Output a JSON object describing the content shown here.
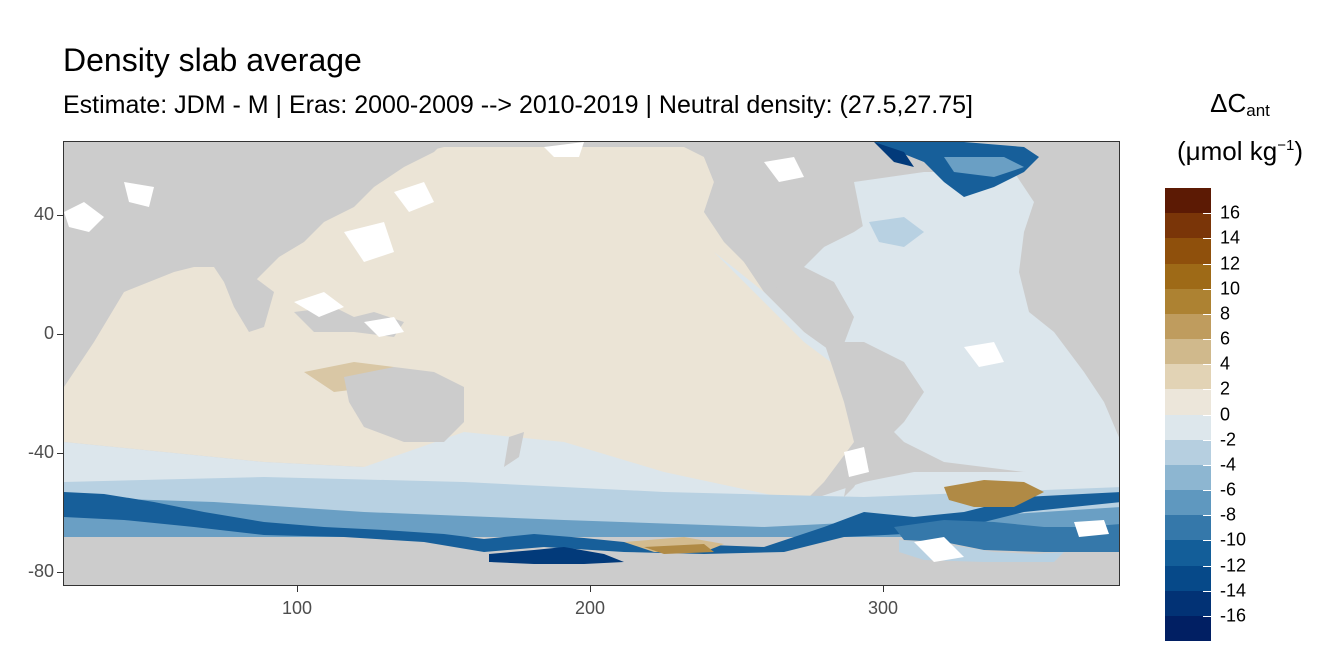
{
  "title": "Density slab average",
  "subtitle": "Estimate: JDM - M | Eras: 2000-2009 --> 2010-2019 | Neutral density: (27.5,27.75]",
  "legend": {
    "title_main": "ΔC",
    "title_sub": "ant",
    "unit_prefix": "(μmol kg",
    "unit_sup": "−1",
    "unit_suffix": ")",
    "labels": [
      "16",
      "14",
      "12",
      "10",
      "8",
      "6",
      "4",
      "2",
      "0",
      "-2",
      "-4",
      "-6",
      "-8",
      "-10",
      "-12",
      "-14",
      "-16"
    ],
    "colors": [
      "#5c1a04",
      "#7a3508",
      "#8f500c",
      "#9e6a17",
      "#ad8232",
      "#bf9c5e",
      "#d0b98c",
      "#e2d3b5",
      "#ece6da",
      "#dde7ec",
      "#b6cfe0",
      "#8db6d1",
      "#5f98bf",
      "#3578aa",
      "#135e99",
      "#064989",
      "#023275",
      "#011f63"
    ]
  },
  "axes": {
    "x_ticks": [
      "100",
      "200",
      "300"
    ],
    "y_ticks": [
      "40",
      "0",
      "-40",
      "-80"
    ]
  },
  "map_colors": {
    "land": "#cccccc",
    "nodata": "#ffffff",
    "near_zero_pos": "#ebe4d6",
    "near_zero_neg": "#dce6ec",
    "light_blue": "#b8d1e2",
    "mid_blue": "#6a9fc4",
    "dark_blue": "#175f9a",
    "navy": "#023a7a",
    "tan": "#d3bb8e",
    "brown": "#b08a45"
  }
}
